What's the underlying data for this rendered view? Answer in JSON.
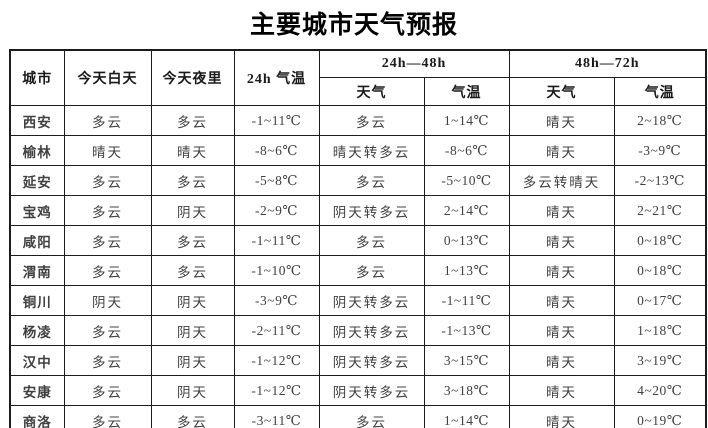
{
  "title": "主要城市天气预报",
  "table": {
    "headers": {
      "city": "城市",
      "today_day": "今天白天",
      "today_night": "今天夜里",
      "temp_24h": "24h 气温",
      "range_24_48": "24h—48h",
      "range_48_72": "48h—72h",
      "weather": "天气",
      "temp": "气温"
    },
    "rows": [
      {
        "city": "西安",
        "day": "多云",
        "night": "多云",
        "t24": "-1~11℃",
        "w48": "多云",
        "t48": "1~14℃",
        "w72": "晴天",
        "t72": "2~18℃"
      },
      {
        "city": "榆林",
        "day": "晴天",
        "night": "晴天",
        "t24": "-8~6℃",
        "w48": "晴天转多云",
        "t48": "-8~6℃",
        "w72": "晴天",
        "t72": "-3~9℃"
      },
      {
        "city": "延安",
        "day": "多云",
        "night": "多云",
        "t24": "-5~8℃",
        "w48": "多云",
        "t48": "-5~10℃",
        "w72": "多云转晴天",
        "t72": "-2~13℃"
      },
      {
        "city": "宝鸡",
        "day": "多云",
        "night": "阴天",
        "t24": "-2~9℃",
        "w48": "阴天转多云",
        "t48": "2~14℃",
        "w72": "晴天",
        "t72": "2~21℃"
      },
      {
        "city": "咸阳",
        "day": "多云",
        "night": "多云",
        "t24": "-1~11℃",
        "w48": "多云",
        "t48": "0~13℃",
        "w72": "晴天",
        "t72": "0~18℃"
      },
      {
        "city": "渭南",
        "day": "多云",
        "night": "多云",
        "t24": "-1~10℃",
        "w48": "多云",
        "t48": "1~13℃",
        "w72": "晴天",
        "t72": "0~18℃"
      },
      {
        "city": "铜川",
        "day": "阴天",
        "night": "阴天",
        "t24": "-3~9℃",
        "w48": "阴天转多云",
        "t48": "-1~11℃",
        "w72": "晴天",
        "t72": "0~17℃"
      },
      {
        "city": "杨凌",
        "day": "多云",
        "night": "阴天",
        "t24": "-2~11℃",
        "w48": "阴天转多云",
        "t48": "-1~13℃",
        "w72": "晴天",
        "t72": "1~18℃"
      },
      {
        "city": "汉中",
        "day": "多云",
        "night": "阴天",
        "t24": "-1~12℃",
        "w48": "阴天转多云",
        "t48": "3~15℃",
        "w72": "晴天",
        "t72": "3~19℃"
      },
      {
        "city": "安康",
        "day": "多云",
        "night": "阴天",
        "t24": "-1~12℃",
        "w48": "阴天转多云",
        "t48": "3~18℃",
        "w72": "晴天",
        "t72": "4~20℃"
      },
      {
        "city": "商洛",
        "day": "多云",
        "night": "多云",
        "t24": "-3~11℃",
        "w48": "多云",
        "t48": "1~14℃",
        "w72": "晴天",
        "t72": "0~19℃"
      }
    ]
  }
}
